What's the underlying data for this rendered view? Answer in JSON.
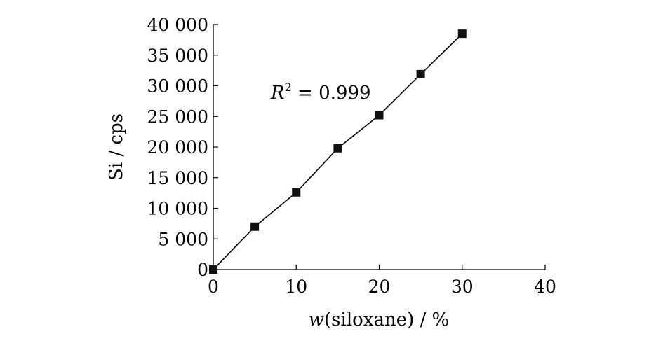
{
  "chart_data": {
    "type": "line",
    "x": [
      0,
      5,
      10,
      15,
      20,
      25,
      30
    ],
    "series": [
      {
        "values": [
          0,
          7000,
          12600,
          19800,
          25200,
          31900,
          38500
        ]
      }
    ],
    "xlim": [
      0,
      40
    ],
    "ylim": [
      0,
      40000
    ],
    "xticks": [
      "0",
      "10",
      "20",
      "30",
      "40"
    ],
    "yticks": [
      "0",
      "5 000",
      "10 000",
      "15 000",
      "20 000",
      "25 000",
      "30 000",
      "35 000",
      "40 000"
    ],
    "xlabel_italic": "w",
    "xlabel_rest": "(siloxane) / %",
    "ylabel": "Si / cps",
    "annotation": {
      "symbol": "R",
      "superscript": "2",
      "text": " = 0.999"
    },
    "grid": false,
    "marker": "square",
    "colors": {
      "line": "#000000",
      "marker": "#111111"
    }
  }
}
